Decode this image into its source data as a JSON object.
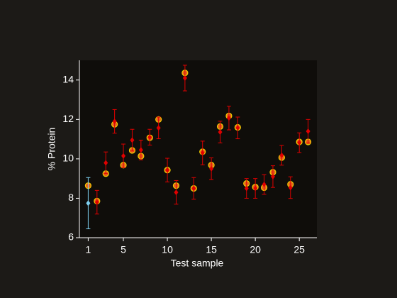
{
  "chart_data": {
    "type": "scatter",
    "xlabel": "Test sample",
    "ylabel": "% Protein",
    "x": [
      1,
      2,
      3,
      4,
      5,
      6,
      7,
      8,
      9,
      10,
      11,
      12,
      13,
      14,
      15,
      16,
      17,
      18,
      19,
      20,
      21,
      22,
      23,
      24,
      25,
      26
    ],
    "series": [
      {
        "marker": "circle",
        "color": "#e8601c",
        "edgecolor": "#f0d000",
        "values": [
          8.64,
          7.86,
          9.25,
          11.75,
          9.68,
          10.43,
          10.14,
          11.07,
          12.0,
          9.43,
          8.64,
          14.36,
          8.5,
          10.36,
          9.68,
          11.64,
          12.18,
          11.6,
          8.75,
          8.57,
          8.54,
          9.32,
          10.07,
          8.71,
          10.86,
          10.86
        ]
      },
      {
        "marker": "diamond",
        "color": "#e00000",
        "colors": [
          "#7fd0f0",
          "#e00000",
          "#e00000",
          "#e00000",
          "#e00000",
          "#e00000",
          "#e00000",
          "#e00000",
          "#e00000",
          "#e00000",
          "#e00000",
          "#e00000",
          "#e00000",
          "#e00000",
          "#e00000",
          "#e00000",
          "#e00000",
          "#e00000",
          "#e00000",
          "#e00000",
          "#e00000",
          "#e00000",
          "#e00000",
          "#e00000",
          "#e00000",
          "#e00000"
        ],
        "values": [
          7.75,
          7.8,
          9.8,
          11.9,
          10.15,
          10.95,
          10.45,
          11.1,
          11.57,
          9.43,
          8.3,
          14.1,
          8.5,
          10.3,
          9.5,
          11.36,
          12.07,
          11.57,
          8.5,
          8.5,
          8.7,
          9.1,
          10.18,
          8.54,
          10.82,
          11.4
        ],
        "errors": [
          1.3,
          0.6,
          0.55,
          0.6,
          0.6,
          0.55,
          0.5,
          0.4,
          0.55,
          0.6,
          0.6,
          0.65,
          0.55,
          0.6,
          0.55,
          0.55,
          0.6,
          0.55,
          0.5,
          0.5,
          0.5,
          0.55,
          0.5,
          0.55,
          0.5,
          0.6
        ]
      }
    ],
    "xlim": [
      0,
      27
    ],
    "ylim": [
      6,
      15
    ],
    "xticks": [
      1,
      5,
      10,
      15,
      20,
      25
    ],
    "yticks": [
      6,
      8,
      10,
      12,
      14
    ]
  }
}
